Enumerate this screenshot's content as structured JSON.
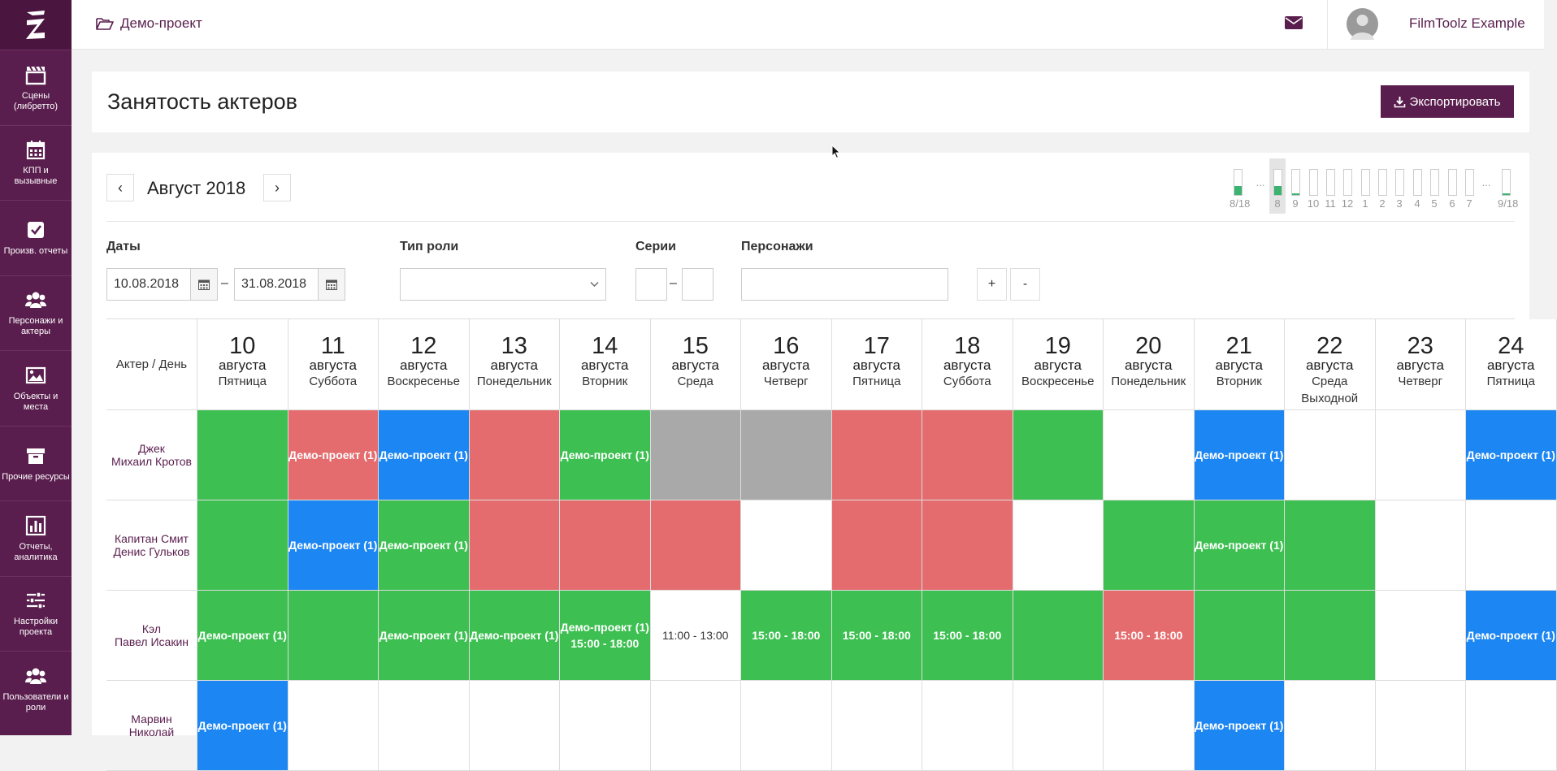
{
  "sidebar": {
    "items": [
      {
        "label": "Сцены (либретто)",
        "icon": "clapperboard-icon"
      },
      {
        "label": "КПП и вызывные",
        "icon": "calendar-icon"
      },
      {
        "label": "Произв. отчеты",
        "icon": "checkbox-icon"
      },
      {
        "label": "Персонажи и актеры",
        "icon": "users-icon"
      },
      {
        "label": "Объекты и места",
        "icon": "image-icon"
      },
      {
        "label": "Прочие ресурсы",
        "icon": "archive-icon"
      },
      {
        "label": "Отчеты, аналитика",
        "icon": "bar-chart-icon"
      },
      {
        "label": "Настройки проекта",
        "icon": "sliders-icon"
      },
      {
        "label": "Пользователи и роли",
        "icon": "users-icon"
      }
    ]
  },
  "topbar": {
    "project": "Демо-проект",
    "username": "FilmToolz Example"
  },
  "page": {
    "title": "Занятость актеров",
    "export_label": "Экспортировать"
  },
  "calendar": {
    "prev": "‹",
    "next": "›",
    "month": "Август 2018"
  },
  "mini_nav": [
    {
      "label": "8/18",
      "fill": 0.35,
      "sel": false
    },
    {
      "label": "...",
      "fill": 0,
      "sel": false,
      "dots": true
    },
    {
      "label": "8",
      "fill": 0.35,
      "sel": true
    },
    {
      "label": "9",
      "fill": 0.05,
      "sel": false
    },
    {
      "label": "10",
      "fill": 0,
      "sel": false
    },
    {
      "label": "11",
      "fill": 0,
      "sel": false
    },
    {
      "label": "12",
      "fill": 0,
      "sel": false
    },
    {
      "label": "1",
      "fill": 0,
      "sel": false
    },
    {
      "label": "2",
      "fill": 0,
      "sel": false
    },
    {
      "label": "3",
      "fill": 0,
      "sel": false
    },
    {
      "label": "4",
      "fill": 0,
      "sel": false
    },
    {
      "label": "5",
      "fill": 0,
      "sel": false
    },
    {
      "label": "6",
      "fill": 0,
      "sel": false
    },
    {
      "label": "7",
      "fill": 0,
      "sel": false
    },
    {
      "label": "...",
      "fill": 0,
      "sel": false,
      "dots": true
    },
    {
      "label": "9/18",
      "fill": 0.05,
      "sel": false
    }
  ],
  "filters": {
    "dates_label": "Даты",
    "date_from": "10.08.2018",
    "date_to": "31.08.2018",
    "date_sep": "–",
    "role_type_label": "Тип роли",
    "series_label": "Серии",
    "series_sep": "–",
    "characters_label": "Персонажи",
    "plus": "+",
    "minus": "-"
  },
  "grid": {
    "corner": "Актер / День",
    "days": [
      {
        "num": "10",
        "month": "августа",
        "weekday": "Пятница"
      },
      {
        "num": "11",
        "month": "августа",
        "weekday": "Суббота"
      },
      {
        "num": "12",
        "month": "августа",
        "weekday": "Воскресенье"
      },
      {
        "num": "13",
        "month": "августа",
        "weekday": "Понедельник"
      },
      {
        "num": "14",
        "month": "августа",
        "weekday": "Вторник"
      },
      {
        "num": "15",
        "month": "августа",
        "weekday": "Среда"
      },
      {
        "num": "16",
        "month": "августа",
        "weekday": "Четверг"
      },
      {
        "num": "17",
        "month": "августа",
        "weekday": "Пятница"
      },
      {
        "num": "18",
        "month": "августа",
        "weekday": "Суббота"
      },
      {
        "num": "19",
        "month": "августа",
        "weekday": "Воскресенье"
      },
      {
        "num": "20",
        "month": "августа",
        "weekday": "Понедельник"
      },
      {
        "num": "21",
        "month": "августа",
        "weekday": "Вторник"
      },
      {
        "num": "22",
        "month": "августа",
        "weekday": "Среда",
        "note": "Выходной"
      },
      {
        "num": "23",
        "month": "августа",
        "weekday": "Четверг"
      },
      {
        "num": "24",
        "month": "августа",
        "weekday": "Пятница"
      }
    ],
    "rows": [
      {
        "actor": [
          "Джек",
          "Михаил Кротов"
        ],
        "cells": [
          [
            "g"
          ],
          [
            "r",
            "Демо-проект (1)"
          ],
          [
            "b",
            "Демо-проект (1)"
          ],
          [
            "r"
          ],
          [
            "g",
            "Демо-проект (1)"
          ],
          [
            "x"
          ],
          [
            "x"
          ],
          [
            "r"
          ],
          [
            "r"
          ],
          [
            "g"
          ],
          [
            "w"
          ],
          [
            "b",
            "Демо-проект (1)"
          ],
          [
            "w"
          ],
          [
            "w"
          ],
          [
            "b",
            "Демо-проект (1)"
          ]
        ]
      },
      {
        "actor": [
          "Капитан Смит",
          "Денис Гульков"
        ],
        "cells": [
          [
            "g"
          ],
          [
            "b",
            "Демо-проект (1)"
          ],
          [
            "g",
            "Демо-проект (1)"
          ],
          [
            "r"
          ],
          [
            "r"
          ],
          [
            "r"
          ],
          [
            "w"
          ],
          [
            "r"
          ],
          [
            "r"
          ],
          [
            "w"
          ],
          [
            "g"
          ],
          [
            "g",
            "Демо-проект (1)"
          ],
          [
            "g"
          ],
          [
            "w"
          ],
          [
            "w"
          ]
        ]
      },
      {
        "actor": [
          "Кэл",
          "Павел Исакин"
        ],
        "cells": [
          [
            "g",
            "Демо-проект (1)"
          ],
          [
            "g"
          ],
          [
            "g",
            "Демо-проект (1)"
          ],
          [
            "g",
            "Демо-проект (1)"
          ],
          [
            "g",
            "Демо-проект (1)",
            "15:00 - 18:00"
          ],
          [
            "w",
            "11:00 - 13:00"
          ],
          [
            "g",
            "15:00 - 18:00"
          ],
          [
            "g",
            "15:00 - 18:00"
          ],
          [
            "g",
            "15:00 - 18:00"
          ],
          [
            "g"
          ],
          [
            "r",
            "15:00 - 18:00"
          ],
          [
            "g"
          ],
          [
            "g"
          ],
          [
            "w"
          ],
          [
            "b",
            "Демо-проект (1)"
          ]
        ]
      },
      {
        "actor": [
          "Марвин",
          "Николай"
        ],
        "cells": [
          [
            "b",
            "Демо-проект (1)"
          ],
          [
            "w"
          ],
          [
            "w"
          ],
          [
            "w"
          ],
          [
            "w"
          ],
          [
            "w"
          ],
          [
            "w"
          ],
          [
            "w"
          ],
          [
            "w"
          ],
          [
            "w"
          ],
          [
            "w"
          ],
          [
            "b",
            "Демо-проект (1)"
          ],
          [
            "w"
          ],
          [
            "w"
          ],
          [
            "w"
          ]
        ]
      }
    ],
    "colors": {
      "g": "#3dc051",
      "r": "#e46c6e",
      "b": "#1c86f2",
      "x": "#a9a9a9",
      "w": "#ffffff"
    }
  }
}
